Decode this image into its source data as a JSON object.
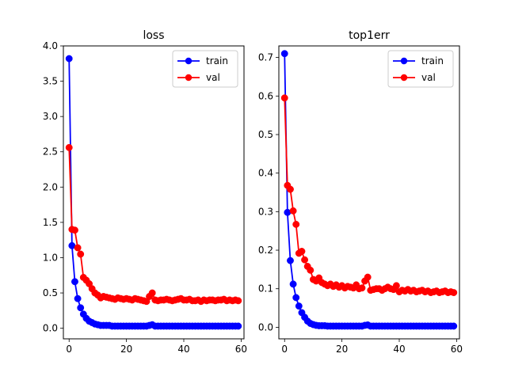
{
  "chart_data": [
    {
      "type": "line",
      "title": "loss",
      "xlabel": "",
      "ylabel": "",
      "xlim": [
        -2,
        61
      ],
      "ylim": [
        -0.15,
        4.0
      ],
      "xticks": [
        0,
        20,
        40,
        60
      ],
      "yticks": [
        0.0,
        0.5,
        1.0,
        1.5,
        2.0,
        2.5,
        3.0,
        3.5,
        4.0
      ],
      "ytick_labels": [
        "0.0",
        "0.5",
        "1.0",
        "1.5",
        "2.0",
        "2.5",
        "3.0",
        "3.5",
        "4.0"
      ],
      "legend_position": "top-right",
      "grid": false,
      "x": [
        0,
        1,
        2,
        3,
        4,
        5,
        6,
        7,
        8,
        9,
        10,
        11,
        12,
        13,
        14,
        15,
        16,
        17,
        18,
        19,
        20,
        21,
        22,
        23,
        24,
        25,
        26,
        27,
        28,
        29,
        30,
        31,
        32,
        33,
        34,
        35,
        36,
        37,
        38,
        39,
        40,
        41,
        42,
        43,
        44,
        45,
        46,
        47,
        48,
        49,
        50,
        51,
        52,
        53,
        54,
        55,
        56,
        57,
        58,
        59
      ],
      "series": [
        {
          "name": "train",
          "color": "#0000ff",
          "values": [
            3.82,
            1.17,
            0.66,
            0.42,
            0.29,
            0.2,
            0.14,
            0.1,
            0.08,
            0.06,
            0.05,
            0.04,
            0.04,
            0.04,
            0.04,
            0.03,
            0.03,
            0.03,
            0.03,
            0.03,
            0.03,
            0.03,
            0.03,
            0.03,
            0.03,
            0.03,
            0.03,
            0.03,
            0.04,
            0.05,
            0.03,
            0.03,
            0.03,
            0.03,
            0.03,
            0.03,
            0.03,
            0.03,
            0.03,
            0.03,
            0.03,
            0.03,
            0.03,
            0.03,
            0.03,
            0.03,
            0.03,
            0.03,
            0.03,
            0.03,
            0.03,
            0.03,
            0.03,
            0.03,
            0.03,
            0.03,
            0.03,
            0.03,
            0.03,
            0.03
          ]
        },
        {
          "name": "val",
          "color": "#ff0000",
          "values": [
            2.56,
            1.4,
            1.39,
            1.14,
            1.05,
            0.72,
            0.68,
            0.63,
            0.56,
            0.5,
            0.47,
            0.43,
            0.45,
            0.44,
            0.43,
            0.42,
            0.41,
            0.43,
            0.42,
            0.41,
            0.42,
            0.41,
            0.4,
            0.42,
            0.41,
            0.4,
            0.39,
            0.38,
            0.45,
            0.5,
            0.4,
            0.39,
            0.4,
            0.4,
            0.41,
            0.4,
            0.39,
            0.4,
            0.41,
            0.42,
            0.4,
            0.4,
            0.41,
            0.39,
            0.39,
            0.4,
            0.38,
            0.4,
            0.39,
            0.4,
            0.4,
            0.39,
            0.4,
            0.4,
            0.41,
            0.39,
            0.4,
            0.39,
            0.4,
            0.39
          ]
        }
      ]
    },
    {
      "type": "line",
      "title": "top1err",
      "xlabel": "",
      "ylabel": "",
      "xlim": [
        -2,
        61
      ],
      "ylim": [
        -0.03,
        0.73
      ],
      "xticks": [
        0,
        20,
        40,
        60
      ],
      "yticks": [
        0.0,
        0.1,
        0.2,
        0.3,
        0.4,
        0.5,
        0.6,
        0.7
      ],
      "ytick_labels": [
        "0.0",
        "0.1",
        "0.2",
        "0.3",
        "0.4",
        "0.5",
        "0.6",
        "0.7"
      ],
      "legend_position": "top-right",
      "grid": false,
      "x": [
        0,
        1,
        2,
        3,
        4,
        5,
        6,
        7,
        8,
        9,
        10,
        11,
        12,
        13,
        14,
        15,
        16,
        17,
        18,
        19,
        20,
        21,
        22,
        23,
        24,
        25,
        26,
        27,
        28,
        29,
        30,
        31,
        32,
        33,
        34,
        35,
        36,
        37,
        38,
        39,
        40,
        41,
        42,
        43,
        44,
        45,
        46,
        47,
        48,
        49,
        50,
        51,
        52,
        53,
        54,
        55,
        56,
        57,
        58,
        59
      ],
      "series": [
        {
          "name": "train",
          "color": "#0000ff",
          "values": [
            0.71,
            0.298,
            0.173,
            0.112,
            0.077,
            0.055,
            0.038,
            0.026,
            0.016,
            0.01,
            0.007,
            0.005,
            0.004,
            0.004,
            0.004,
            0.003,
            0.003,
            0.003,
            0.003,
            0.003,
            0.003,
            0.003,
            0.003,
            0.003,
            0.003,
            0.003,
            0.003,
            0.003,
            0.005,
            0.006,
            0.003,
            0.003,
            0.003,
            0.003,
            0.003,
            0.003,
            0.003,
            0.003,
            0.003,
            0.003,
            0.003,
            0.003,
            0.003,
            0.003,
            0.003,
            0.003,
            0.003,
            0.003,
            0.003,
            0.003,
            0.003,
            0.003,
            0.003,
            0.003,
            0.003,
            0.003,
            0.003,
            0.003,
            0.003,
            0.003
          ]
        },
        {
          "name": "val",
          "color": "#ff0000",
          "values": [
            0.595,
            0.368,
            0.358,
            0.302,
            0.267,
            0.192,
            0.197,
            0.175,
            0.158,
            0.148,
            0.124,
            0.12,
            0.128,
            0.116,
            0.112,
            0.108,
            0.112,
            0.106,
            0.11,
            0.104,
            0.108,
            0.102,
            0.106,
            0.104,
            0.102,
            0.11,
            0.1,
            0.102,
            0.12,
            0.13,
            0.096,
            0.098,
            0.1,
            0.1,
            0.096,
            0.1,
            0.104,
            0.1,
            0.098,
            0.108,
            0.092,
            0.096,
            0.094,
            0.098,
            0.094,
            0.096,
            0.092,
            0.094,
            0.096,
            0.092,
            0.094,
            0.09,
            0.092,
            0.094,
            0.09,
            0.092,
            0.094,
            0.09,
            0.092,
            0.09
          ]
        }
      ]
    }
  ]
}
